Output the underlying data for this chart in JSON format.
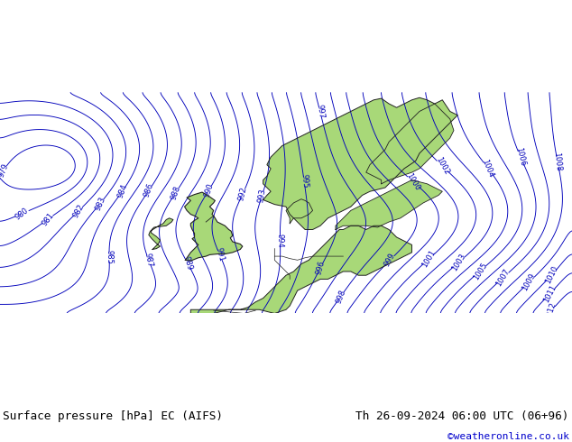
{
  "title_left": "Surface pressure [hPa] EC (AIFS)",
  "title_right": "Th 26-09-2024 06:00 UTC (06+96)",
  "credit": "©weatheronline.co.uk",
  "bg_land_color": "#a8d878",
  "bg_sea_color": "#c8ccd8",
  "contour_color": "#0000bb",
  "border_color": "#222222",
  "bottom_bar_color": "#ffffff",
  "figsize": [
    6.34,
    4.9
  ],
  "dpi": 100
}
